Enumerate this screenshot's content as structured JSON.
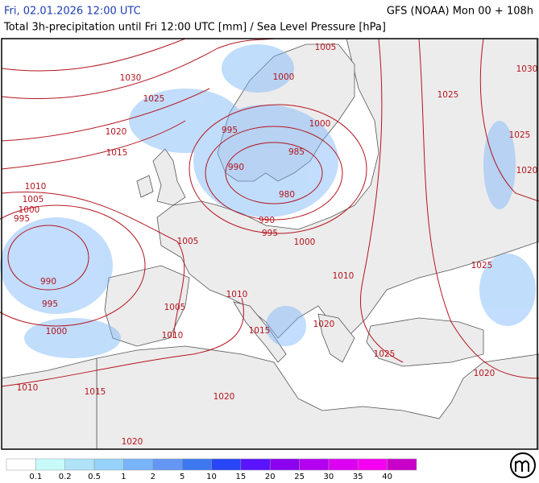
{
  "header": {
    "datetime": "Fri, 02.01.2026 12:00 UTC",
    "model": "GFS (NOAA) Mon 00 + 108h",
    "subtitle": "Total 3h-precipitation until Fri 12:00 UTC [mm] / Sea Level Pressure [hPa]"
  },
  "isobar_labels": [
    1030,
    1025,
    1020,
    1015,
    1010,
    1005,
    1000,
    995,
    990,
    995,
    1000,
    1010,
    1015,
    1020,
    1005,
    1010,
    1005,
    1015,
    1010,
    1020,
    995,
    990,
    985,
    980,
    990,
    995,
    1000,
    1000,
    1000,
    1005,
    1010,
    1020,
    1025,
    1020,
    1025,
    1025,
    1020,
    1030,
    1025
  ],
  "legend": {
    "colors": [
      "#ffffff",
      "#c8fafa",
      "#b0e2f8",
      "#96d2fa",
      "#78b4fa",
      "#6496f5",
      "#3c78f0",
      "#2846f5",
      "#5a14ff",
      "#8c00f0",
      "#b400f0",
      "#dc00f0",
      "#f500f0",
      "#c800c8"
    ],
    "values": [
      0.1,
      0.2,
      0.5,
      1,
      2,
      5,
      10,
      15,
      20,
      25,
      30,
      35,
      40
    ]
  }
}
